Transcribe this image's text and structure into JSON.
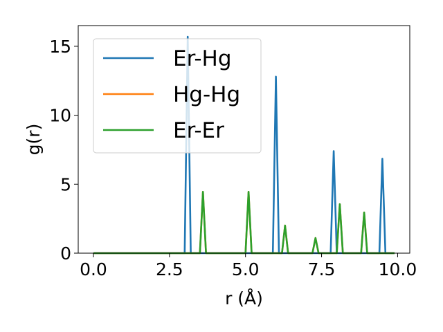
{
  "chart_data": {
    "type": "line",
    "xlabel": "r (Å)",
    "ylabel": "g(r)",
    "xlim": [
      -0.5,
      10.4
    ],
    "ylim": [
      0,
      16.5
    ],
    "xticks": [
      0.0,
      2.5,
      5.0,
      7.5,
      10.0
    ],
    "xtick_labels": [
      "0.0",
      "2.5",
      "5.0",
      "7.5",
      "10.0"
    ],
    "yticks": [
      0,
      5,
      10,
      15
    ],
    "ytick_labels": [
      "0",
      "5",
      "10",
      "15"
    ],
    "grid": false,
    "legend_position": "upper-left",
    "series": [
      {
        "name": "Er-Hg",
        "color": "#1f77b4",
        "x": [
          0.0,
          3.0,
          3.1,
          3.2,
          5.9,
          6.0,
          6.1,
          7.8,
          7.9,
          8.0,
          9.4,
          9.5,
          9.6,
          9.9
        ],
        "y": [
          0,
          0,
          15.7,
          0,
          0,
          12.8,
          0,
          0,
          7.4,
          0,
          0,
          6.85,
          0,
          0
        ]
      },
      {
        "name": "Hg-Hg",
        "color": "#ff7f0e",
        "x": [
          0.0,
          3.5,
          3.6,
          3.7,
          5.0,
          5.1,
          5.2,
          6.2,
          6.3,
          6.4,
          7.2,
          7.3,
          7.4,
          8.0,
          8.1,
          8.2,
          8.8,
          8.9,
          9.0,
          9.9
        ],
        "y": [
          0,
          0,
          4.45,
          0,
          0,
          4.45,
          0,
          0,
          2.0,
          0,
          0,
          1.1,
          0,
          0,
          3.55,
          0,
          0,
          2.95,
          0,
          0
        ]
      },
      {
        "name": "Er-Er",
        "color": "#2ca02c",
        "x": [
          0.0,
          3.5,
          3.6,
          3.7,
          5.0,
          5.1,
          5.2,
          6.2,
          6.3,
          6.4,
          7.2,
          7.3,
          7.4,
          8.0,
          8.1,
          8.2,
          8.8,
          8.9,
          9.0,
          9.9
        ],
        "y": [
          0,
          0,
          4.45,
          0,
          0,
          4.45,
          0,
          0,
          2.0,
          0,
          0,
          1.1,
          0,
          0,
          3.55,
          0,
          0,
          2.95,
          0,
          0
        ]
      }
    ]
  }
}
